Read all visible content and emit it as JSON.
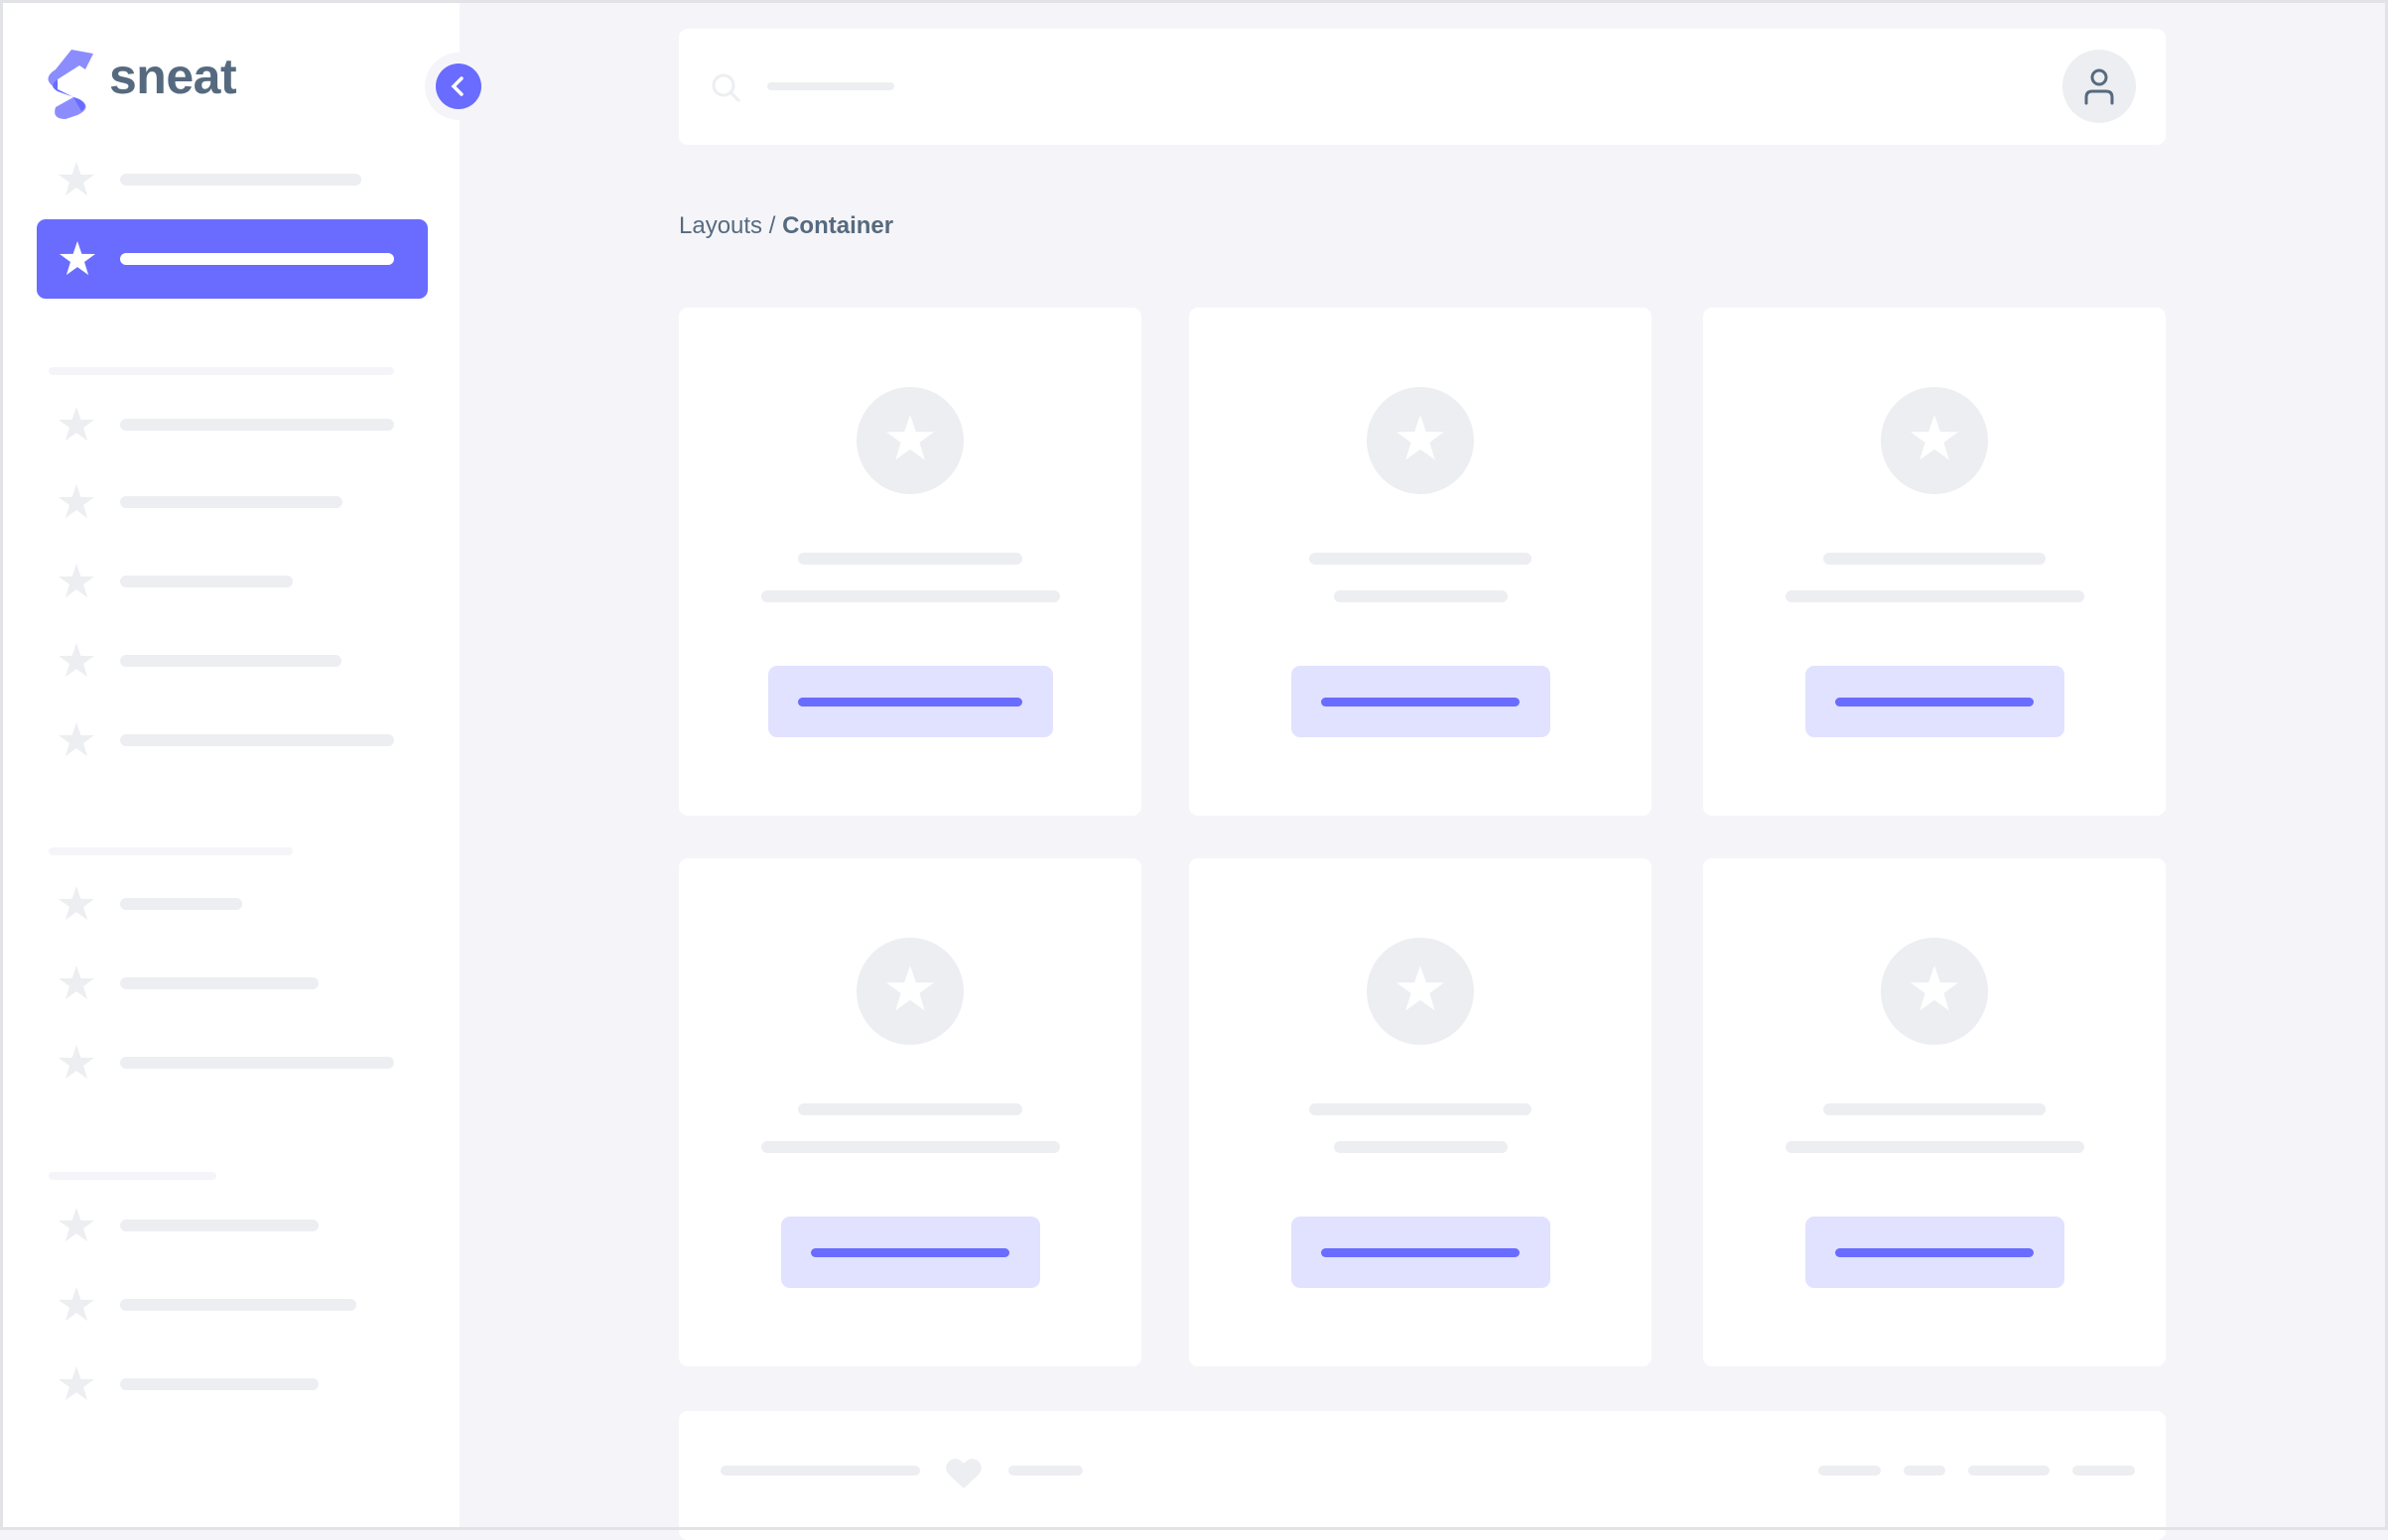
{
  "colors": {
    "accent": "#696cff",
    "accent_light": "#e1e2ff",
    "placeholder": "#eceef1",
    "text": "#566a7f",
    "background": "#f5f5f9"
  },
  "sidebar": {
    "logo_text": "sneat",
    "logo_icon": "sneat-logo-icon",
    "toggle_icon": "chevron-left-icon",
    "item_icon": "star-icon"
  },
  "navbar": {
    "search_icon": "search-icon",
    "avatar_icon": "user-icon"
  },
  "breadcrumb": {
    "parent": "Layouts",
    "separator": " / ",
    "current": "Container"
  },
  "cards": {
    "icon": "star-icon",
    "count": 6
  },
  "footer": {
    "icon": "heart-icon"
  }
}
